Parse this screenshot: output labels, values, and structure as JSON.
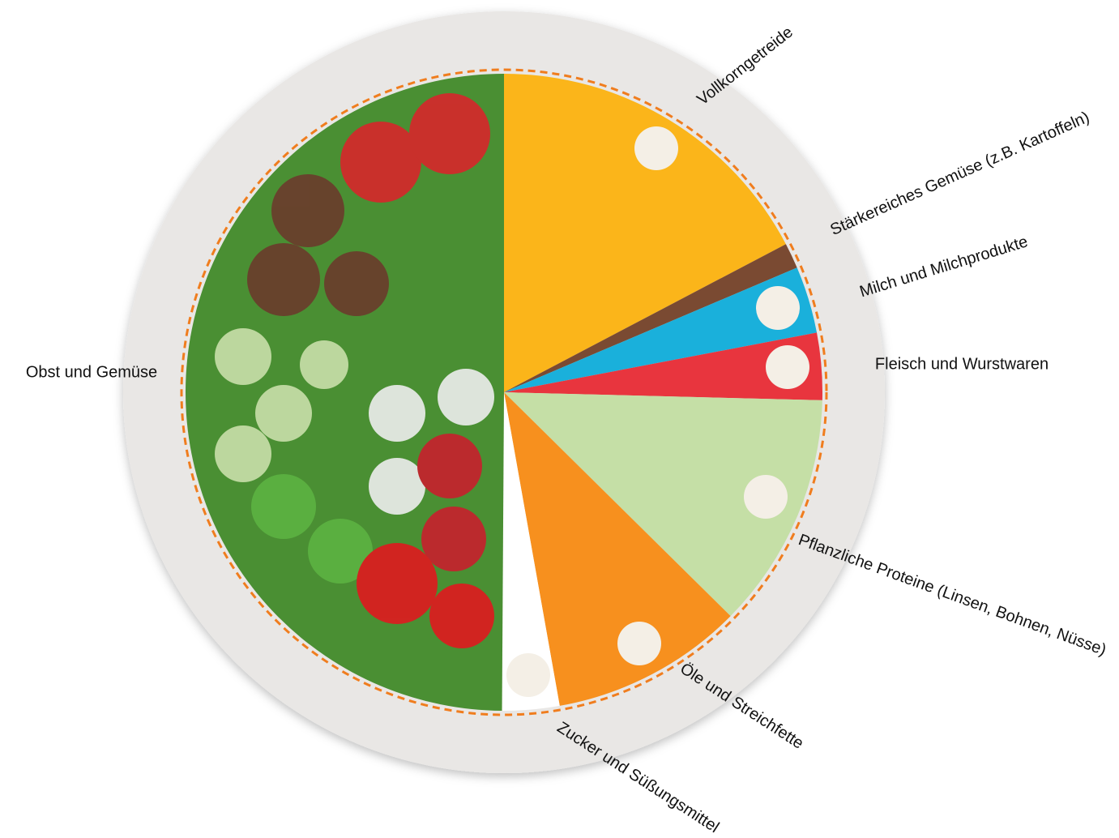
{
  "chart_data": {
    "type": "pie",
    "categories": [
      "Vollkorngetreide",
      "Stärkereiches Gemüse (z.B. Kartoffeln)",
      "Milch und Milchprodukte",
      "Fleisch und Wurstwaren",
      "Pflanzliche Proteine (Linsen, Bohnen, Nüsse)",
      "Öle und Streichfette",
      "Zucker und Süßungsmittel",
      "Obst und Gemüse"
    ],
    "values": [
      17.3,
      1.3,
      3.4,
      3.4,
      12,
      9.8,
      2.9,
      49.9
    ],
    "colors": [
      "#fbb51a",
      "#7a4a32",
      "#1ab0db",
      "#e8353e",
      "#c5dfa6",
      "#f7901e",
      "#ffffff",
      "#4a8f33"
    ]
  }
}
